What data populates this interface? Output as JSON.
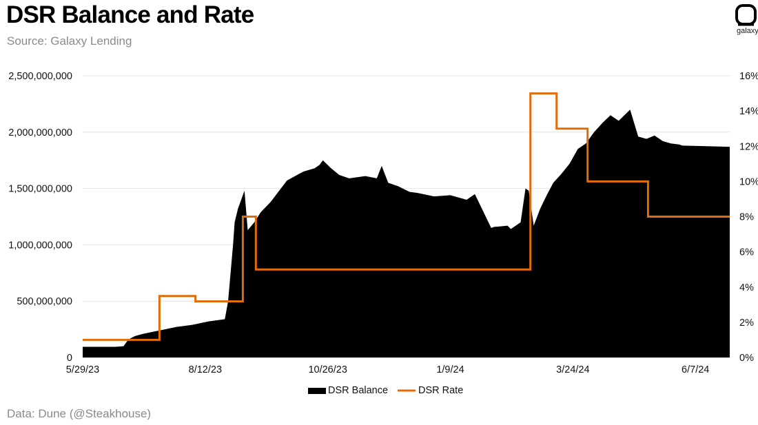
{
  "header": {
    "title": "DSR Balance and Rate",
    "subtitle": "Source: Galaxy Lending"
  },
  "footer": {
    "note": "Data: Dune (@Steakhouse)"
  },
  "brand": {
    "logo_text": "galaxy"
  },
  "colors": {
    "balance": "#000000",
    "rate": "#E36C0A",
    "grid": "#e3e3e3"
  },
  "chart_data": {
    "type": "area",
    "title": "DSR Balance and Rate",
    "subtitle": "Source: Galaxy Lending",
    "x_start": "5/29/23",
    "x_end": "7/1/24",
    "x_ticks": [
      "5/29/23",
      "8/12/23",
      "10/26/23",
      "1/9/24",
      "3/24/24",
      "6/7/24"
    ],
    "y_left": {
      "ylim": [
        0,
        2500000000
      ],
      "ticks": [
        "0",
        "500,000,000",
        "1,000,000,000",
        "1,500,000,000",
        "2,000,000,000",
        "2,500,000,000"
      ]
    },
    "y_right": {
      "ylim": [
        0,
        16
      ],
      "ticks": [
        "0%",
        "2%",
        "4%",
        "6%",
        "8%",
        "10%",
        "12%",
        "14%",
        "16%"
      ]
    },
    "grid": true,
    "legend_position": "bottom-center",
    "series": [
      {
        "name": "DSR Balance",
        "type": "area",
        "axis": "left",
        "x": [
          0,
          10,
          20,
          25,
          28,
          32,
          37,
          47,
          57,
          67,
          77,
          87,
          89,
          92,
          93,
          95,
          97,
          99,
          101,
          105,
          109,
          115,
          125,
          135,
          142,
          145,
          147,
          152,
          157,
          163,
          173,
          180,
          183,
          187,
          193,
          200,
          205,
          215,
          225,
          235,
          240,
          250,
          252,
          253,
          260,
          262,
          268,
          271,
          273,
          276,
          280,
          284,
          288,
          293,
          298,
          303,
          308,
          313,
          318,
          323,
          328,
          335,
          340,
          345,
          350,
          355,
          360,
          365,
          367,
          396
        ],
        "values": [
          95000000,
          95000000,
          95000000,
          100000000,
          160000000,
          190000000,
          210000000,
          240000000,
          270000000,
          290000000,
          320000000,
          340000000,
          500000000,
          1000000000,
          1200000000,
          1320000000,
          1400000000,
          1480000000,
          1130000000,
          1200000000,
          1290000000,
          1380000000,
          1570000000,
          1650000000,
          1680000000,
          1710000000,
          1750000000,
          1680000000,
          1620000000,
          1590000000,
          1610000000,
          1590000000,
          1700000000,
          1550000000,
          1520000000,
          1470000000,
          1460000000,
          1430000000,
          1440000000,
          1400000000,
          1450000000,
          1150000000,
          1160000000,
          1160000000,
          1170000000,
          1140000000,
          1200000000,
          1500000000,
          1480000000,
          1170000000,
          1320000000,
          1440000000,
          1550000000,
          1630000000,
          1720000000,
          1850000000,
          1900000000,
          2000000000,
          2080000000,
          2150000000,
          2100000000,
          2200000000,
          1960000000,
          1940000000,
          1970000000,
          1920000000,
          1900000000,
          1890000000,
          1880000000,
          1870000000
        ]
      },
      {
        "name": "DSR Rate",
        "type": "line",
        "axis": "right",
        "x": [
          0,
          19,
          19,
          47,
          47,
          64,
          64,
          69,
          69,
          77,
          77,
          77,
          77,
          98,
          98,
          106,
          106,
          274,
          274,
          290,
          290,
          309,
          309,
          330,
          330,
          346,
          346,
          396
        ],
        "values": [
          1,
          1,
          1,
          1,
          3.49,
          3.49,
          3.49,
          3.49,
          3.19,
          3.19,
          3.19,
          3.19,
          3.19,
          3.19,
          8,
          8,
          5,
          5,
          15,
          15,
          13,
          13,
          10,
          10,
          10,
          10,
          8,
          8
        ]
      }
    ]
  }
}
